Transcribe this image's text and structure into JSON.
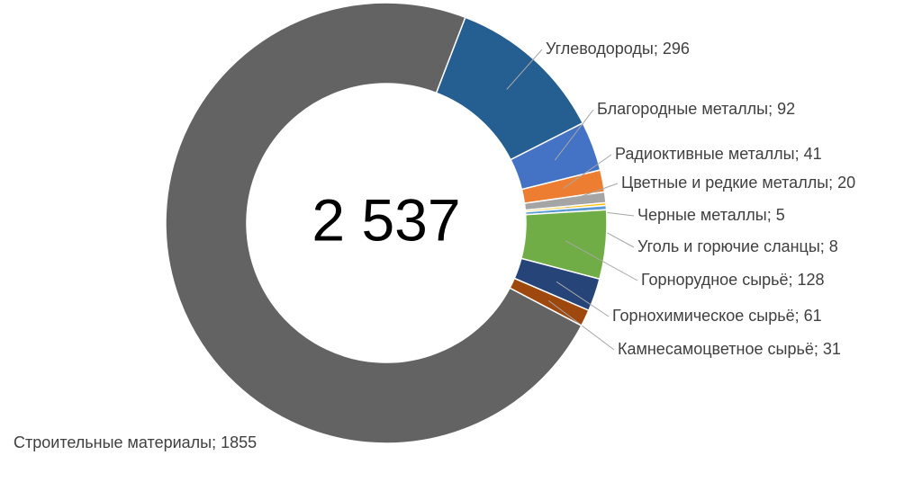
{
  "chart_data": {
    "type": "donut",
    "total": {
      "value": 2537,
      "label": "2 537"
    },
    "values": [
      296,
      92,
      41,
      20,
      5,
      8,
      128,
      61,
      31,
      1855
    ],
    "value_labels": [
      "Углеводороды; 296",
      "Благородные металлы; 92",
      "Радиоктивные металлы; 41",
      "Цветные и редкие металлы; 20",
      "Черные металлы; 5",
      "Уголь и горючие сланцы; 8",
      "Горнорудное сырьё; 128",
      "Горнохимическое сырьё; 61",
      "Камнесамоцветное сырьё; 31",
      "Строительные материалы; 1855"
    ],
    "colors": [
      "#255e91",
      "#4472c4",
      "#ed7d31",
      "#a5a5a5",
      "#ffc000",
      "#5b9bd5",
      "#70ad47",
      "#264478",
      "#9e480e",
      "#636363"
    ]
  }
}
